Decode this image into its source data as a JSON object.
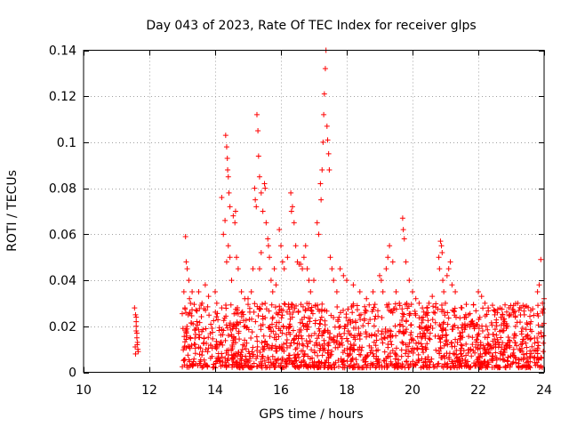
{
  "chart_data": {
    "type": "scatter",
    "title": "Day 043 of 2023, Rate Of TEC Index for receiver glps",
    "xlabel": "GPS time / hours",
    "ylabel": "ROTI / TECUs",
    "xlim": [
      10,
      24
    ],
    "ylim": [
      0,
      0.14
    ],
    "grid": true,
    "marker": "+",
    "color": "#ff0000",
    "x_ticks": [
      {
        "value": 10,
        "label": "10"
      },
      {
        "value": 12,
        "label": "12"
      },
      {
        "value": 14,
        "label": "14"
      },
      {
        "value": 16,
        "label": "16"
      },
      {
        "value": 18,
        "label": "18"
      },
      {
        "value": 20,
        "label": "20"
      },
      {
        "value": 22,
        "label": "22"
      },
      {
        "value": 24,
        "label": "24"
      }
    ],
    "y_ticks": [
      {
        "value": 0,
        "label": "0"
      },
      {
        "value": 0.02,
        "label": "0.02"
      },
      {
        "value": 0.04,
        "label": "0.04"
      },
      {
        "value": 0.06,
        "label": "0.06"
      },
      {
        "value": 0.08,
        "label": "0.08"
      },
      {
        "value": 0.1,
        "label": "0.1"
      },
      {
        "value": 0.12,
        "label": "0.12"
      },
      {
        "value": 0.14,
        "label": "0.14"
      }
    ],
    "series": [
      {
        "name": "ROTI",
        "points": [
          [
            11.55,
            0.028
          ],
          [
            11.58,
            0.025
          ],
          [
            11.6,
            0.022
          ],
          [
            11.6,
            0.018
          ],
          [
            11.62,
            0.015
          ],
          [
            11.63,
            0.012
          ],
          [
            11.65,
            0.01
          ],
          [
            11.58,
            0.008
          ],
          [
            11.6,
            0.02
          ],
          [
            11.62,
            0.017
          ],
          [
            11.64,
            0.013
          ],
          [
            11.57,
            0.011
          ],
          [
            11.66,
            0.009
          ],
          [
            11.6,
            0.024
          ],
          [
            13.05,
            0.035
          ],
          [
            13.1,
            0.059
          ],
          [
            13.12,
            0.048
          ],
          [
            13.15,
            0.045
          ],
          [
            13.2,
            0.04
          ],
          [
            13.25,
            0.03
          ],
          [
            13.3,
            0.035
          ],
          [
            13.08,
            0.028
          ],
          [
            13.18,
            0.025
          ],
          [
            13.22,
            0.032
          ],
          [
            13.5,
            0.035
          ],
          [
            13.6,
            0.03
          ],
          [
            13.7,
            0.038
          ],
          [
            13.8,
            0.033
          ],
          [
            14.0,
            0.035
          ],
          [
            14.05,
            0.03
          ],
          [
            14.2,
            0.028
          ],
          [
            14.2,
            0.076
          ],
          [
            14.25,
            0.06
          ],
          [
            14.3,
            0.066
          ],
          [
            14.32,
            0.103
          ],
          [
            14.35,
            0.098
          ],
          [
            14.37,
            0.093
          ],
          [
            14.38,
            0.088
          ],
          [
            14.4,
            0.085
          ],
          [
            14.42,
            0.078
          ],
          [
            14.45,
            0.072
          ],
          [
            14.35,
            0.048
          ],
          [
            14.4,
            0.055
          ],
          [
            14.45,
            0.05
          ],
          [
            14.5,
            0.04
          ],
          [
            14.55,
            0.068
          ],
          [
            14.6,
            0.065
          ],
          [
            14.62,
            0.07
          ],
          [
            14.65,
            0.05
          ],
          [
            14.7,
            0.045
          ],
          [
            14.8,
            0.035
          ],
          [
            14.9,
            0.032
          ],
          [
            15.0,
            0.032
          ],
          [
            15.1,
            0.035
          ],
          [
            15.15,
            0.045
          ],
          [
            15.2,
            0.08
          ],
          [
            15.22,
            0.075
          ],
          [
            15.25,
            0.072
          ],
          [
            15.27,
            0.112
          ],
          [
            15.3,
            0.105
          ],
          [
            15.32,
            0.094
          ],
          [
            15.35,
            0.085
          ],
          [
            15.4,
            0.078
          ],
          [
            15.45,
            0.07
          ],
          [
            15.5,
            0.082
          ],
          [
            15.52,
            0.08
          ],
          [
            15.55,
            0.065
          ],
          [
            15.6,
            0.058
          ],
          [
            15.62,
            0.055
          ],
          [
            15.65,
            0.05
          ],
          [
            15.4,
            0.052
          ],
          [
            15.35,
            0.045
          ],
          [
            15.7,
            0.04
          ],
          [
            15.75,
            0.035
          ],
          [
            15.8,
            0.045
          ],
          [
            15.85,
            0.038
          ],
          [
            15.95,
            0.062
          ],
          [
            16.0,
            0.055
          ],
          [
            16.05,
            0.048
          ],
          [
            16.1,
            0.045
          ],
          [
            16.2,
            0.05
          ],
          [
            16.3,
            0.078
          ],
          [
            16.32,
            0.07
          ],
          [
            16.35,
            0.072
          ],
          [
            16.4,
            0.065
          ],
          [
            16.45,
            0.055
          ],
          [
            16.5,
            0.048
          ],
          [
            16.55,
            0.047
          ],
          [
            16.6,
            0.047
          ],
          [
            16.65,
            0.045
          ],
          [
            16.7,
            0.05
          ],
          [
            16.75,
            0.055
          ],
          [
            16.8,
            0.045
          ],
          [
            16.85,
            0.04
          ],
          [
            16.9,
            0.035
          ],
          [
            17.0,
            0.04
          ],
          [
            17.1,
            0.065
          ],
          [
            17.15,
            0.06
          ],
          [
            17.2,
            0.082
          ],
          [
            17.22,
            0.075
          ],
          [
            17.25,
            0.088
          ],
          [
            17.28,
            0.1
          ],
          [
            17.3,
            0.112
          ],
          [
            17.32,
            0.121
          ],
          [
            17.35,
            0.132
          ],
          [
            17.37,
            0.14
          ],
          [
            17.4,
            0.107
          ],
          [
            17.42,
            0.101
          ],
          [
            17.45,
            0.095
          ],
          [
            17.47,
            0.088
          ],
          [
            17.5,
            0.05
          ],
          [
            17.55,
            0.045
          ],
          [
            17.6,
            0.04
          ],
          [
            17.7,
            0.035
          ],
          [
            17.8,
            0.045
          ],
          [
            17.9,
            0.042
          ],
          [
            18.0,
            0.04
          ],
          [
            18.2,
            0.038
          ],
          [
            18.4,
            0.035
          ],
          [
            18.6,
            0.032
          ],
          [
            18.8,
            0.035
          ],
          [
            19.0,
            0.042
          ],
          [
            19.05,
            0.04
          ],
          [
            19.1,
            0.035
          ],
          [
            19.2,
            0.045
          ],
          [
            19.25,
            0.05
          ],
          [
            19.3,
            0.055
          ],
          [
            19.4,
            0.048
          ],
          [
            19.5,
            0.035
          ],
          [
            19.6,
            0.03
          ],
          [
            19.7,
            0.067
          ],
          [
            19.72,
            0.062
          ],
          [
            19.75,
            0.058
          ],
          [
            19.8,
            0.048
          ],
          [
            19.9,
            0.04
          ],
          [
            20.0,
            0.035
          ],
          [
            20.1,
            0.032
          ],
          [
            20.2,
            0.03
          ],
          [
            20.3,
            0.028
          ],
          [
            20.4,
            0.025
          ],
          [
            20.5,
            0.03
          ],
          [
            20.6,
            0.033
          ],
          [
            20.8,
            0.05
          ],
          [
            20.82,
            0.045
          ],
          [
            20.85,
            0.057
          ],
          [
            20.88,
            0.055
          ],
          [
            20.9,
            0.052
          ],
          [
            20.92,
            0.04
          ],
          [
            20.95,
            0.035
          ],
          [
            21.0,
            0.03
          ],
          [
            21.05,
            0.042
          ],
          [
            21.1,
            0.045
          ],
          [
            21.15,
            0.048
          ],
          [
            21.2,
            0.038
          ],
          [
            21.3,
            0.035
          ],
          [
            21.5,
            0.028
          ],
          [
            21.7,
            0.025
          ],
          [
            22.0,
            0.035
          ],
          [
            22.1,
            0.033
          ],
          [
            22.2,
            0.03
          ],
          [
            22.3,
            0.028
          ],
          [
            22.5,
            0.025
          ],
          [
            22.8,
            0.022
          ],
          [
            23.0,
            0.025
          ],
          [
            23.2,
            0.03
          ],
          [
            23.3,
            0.028
          ],
          [
            23.4,
            0.025
          ],
          [
            23.6,
            0.022
          ],
          [
            23.8,
            0.035
          ],
          [
            23.85,
            0.038
          ],
          [
            23.9,
            0.049
          ],
          [
            23.95,
            0.03
          ],
          [
            24.0,
            0.032
          ]
        ],
        "dense_band": {
          "description": "Dense scatter of ROTI values between 13.0 and 24.0 GPS hours, mostly 0.000-0.028 TECUs",
          "x_range": [
            13.0,
            24.0
          ],
          "y_range": [
            0.0,
            0.028
          ]
        }
      }
    ]
  }
}
